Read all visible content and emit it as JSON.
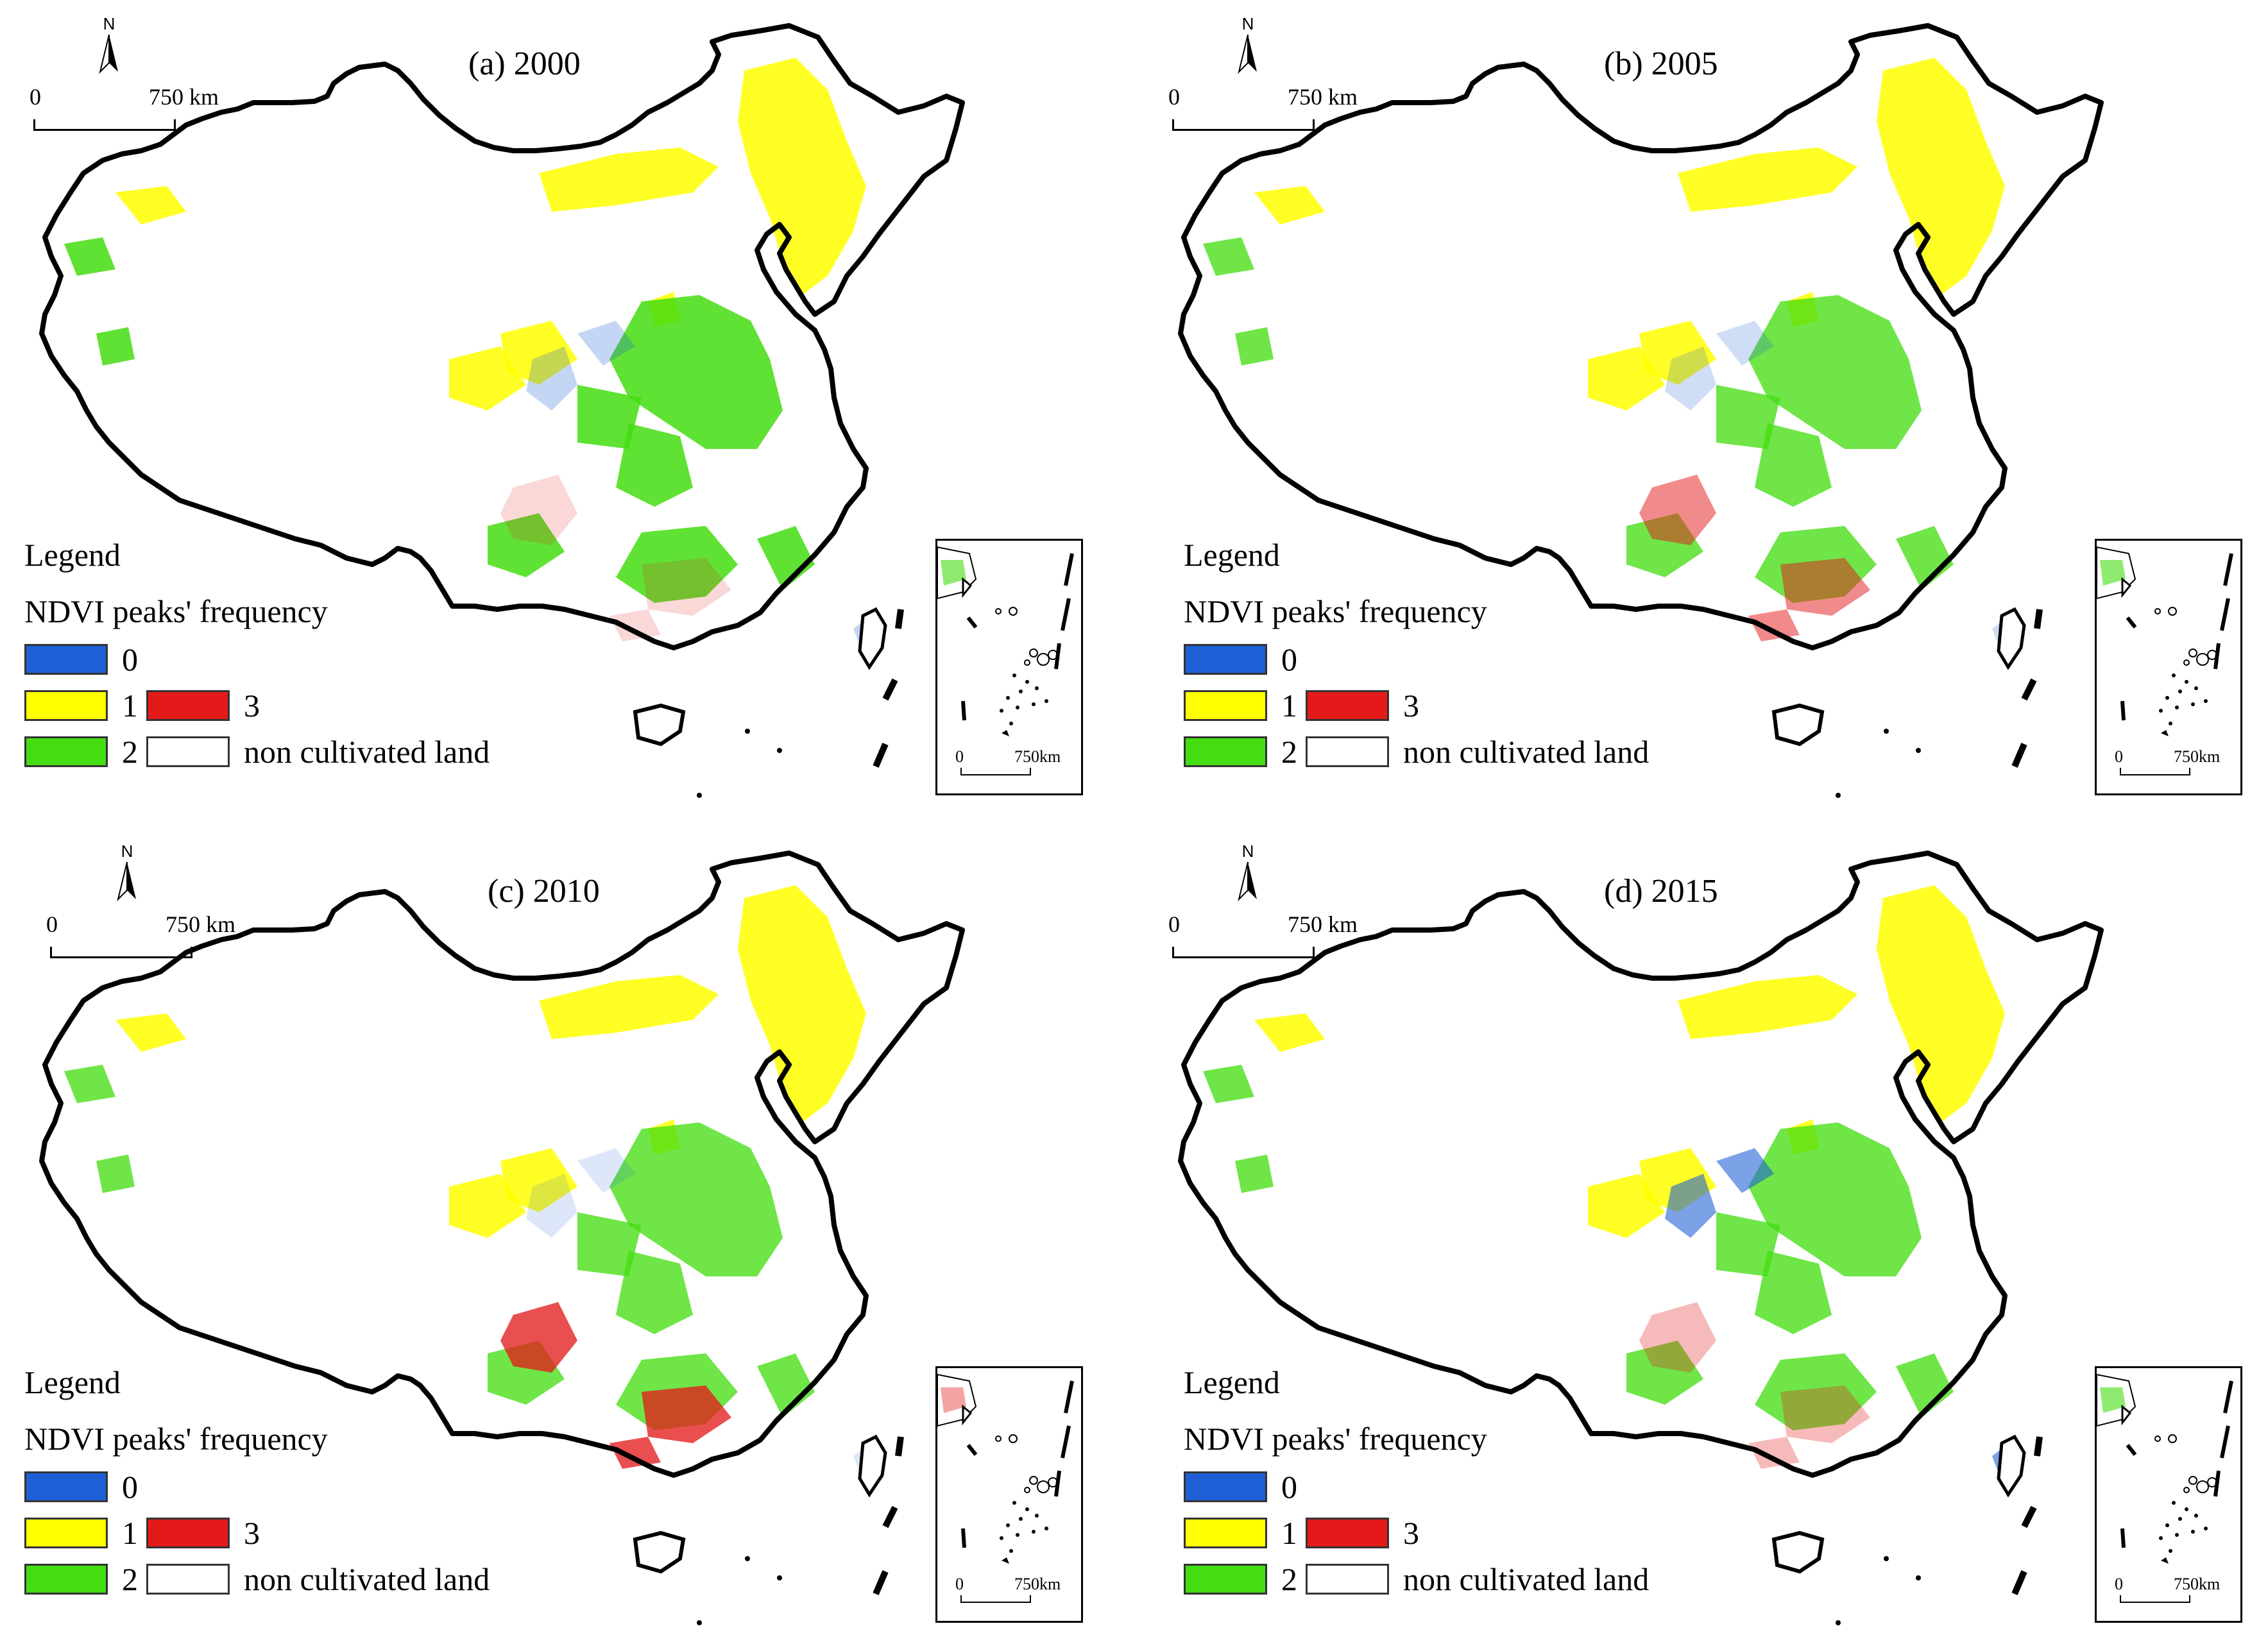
{
  "figure": {
    "legend_title": "Legend",
    "legend_subtitle": "NDVI peaks' frequency",
    "legend_items": [
      {
        "label": "0",
        "color": "#1f5fd6"
      },
      {
        "label": "1",
        "color": "#ffff00"
      },
      {
        "label": "2",
        "color": "#44dd11"
      },
      {
        "label": "3",
        "color": "#e41a1a"
      },
      {
        "label": "non cultivated land",
        "color": "#ffffff"
      }
    ],
    "north_label": "N",
    "scale_start": "0",
    "scale_end": "750 km",
    "inset_scale_start": "0",
    "inset_scale_end": "750km"
  },
  "panels": [
    {
      "title": "(a) 2000",
      "patches": {
        "blue": 0.3,
        "red": 0.2,
        "green": 1.0,
        "yellow": 1.0
      }
    },
    {
      "title": "(b) 2005",
      "patches": {
        "blue": 0.25,
        "red": 0.6,
        "green": 0.9,
        "yellow": 1.0
      }
    },
    {
      "title": "(c) 2010",
      "patches": {
        "blue": 0.15,
        "red": 0.9,
        "green": 0.9,
        "yellow": 1.0
      }
    },
    {
      "title": "(d) 2015",
      "patches": {
        "blue": 0.7,
        "red": 0.35,
        "green": 0.9,
        "yellow": 1.0
      }
    }
  ]
}
